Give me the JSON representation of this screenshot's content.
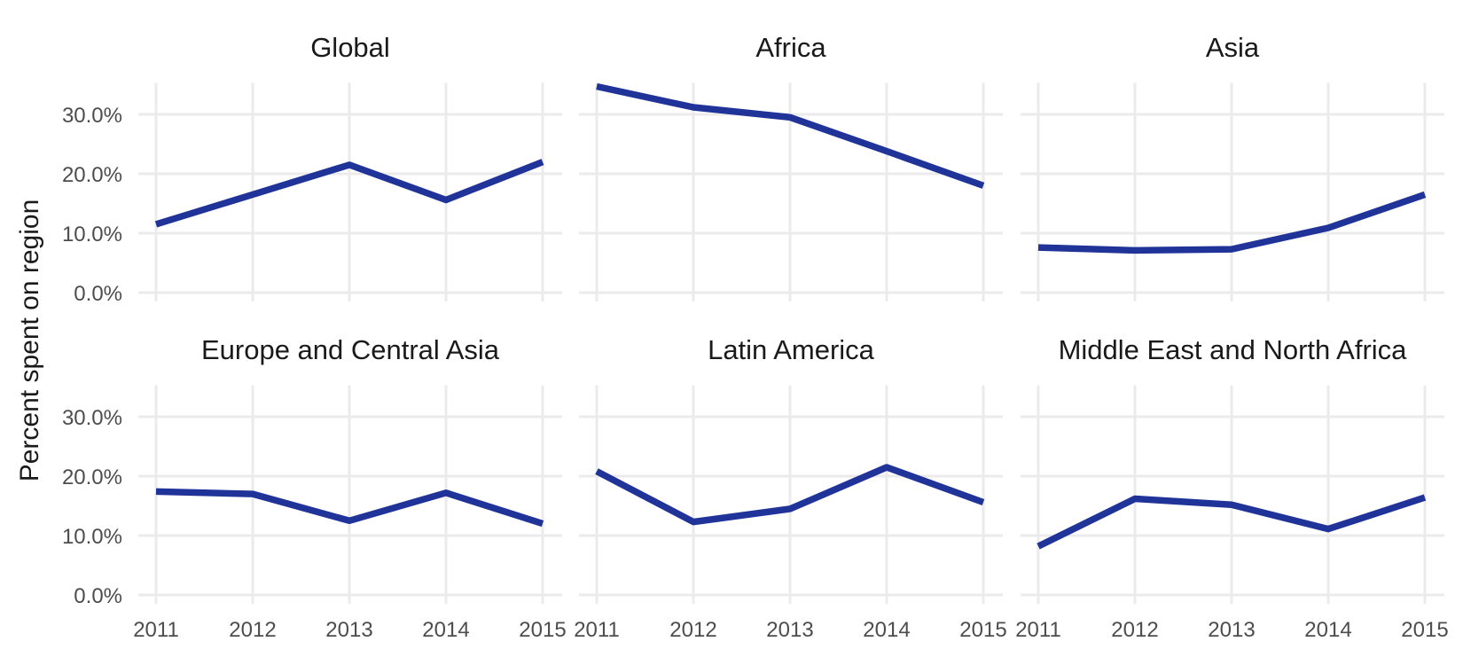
{
  "chart_data": {
    "type": "line",
    "ylabel": "Percent spent on region",
    "xlabel": "",
    "x": [
      2011,
      2012,
      2013,
      2014,
      2015
    ],
    "x_tick_labels": [
      "2011",
      "2012",
      "2013",
      "2014",
      "2015"
    ],
    "y_ticks": [
      0,
      10,
      20,
      30
    ],
    "y_tick_labels": [
      "0.0%",
      "10.0%",
      "20.0%",
      "30.0%"
    ],
    "ylim": [
      0,
      35
    ],
    "line_color": "#1f3399",
    "grid": true,
    "layout": "2 rows x 3 facets",
    "facets": [
      {
        "title": "Global",
        "values": [
          11.5,
          16.5,
          21.5,
          15.6,
          22.0
        ]
      },
      {
        "title": "Africa",
        "values": [
          34.7,
          31.2,
          29.5,
          23.8,
          18.0
        ]
      },
      {
        "title": "Asia",
        "values": [
          7.6,
          7.1,
          7.3,
          10.9,
          16.5
        ]
      },
      {
        "title": "Europe and Central Asia",
        "values": [
          17.4,
          17.0,
          12.5,
          17.2,
          12.0
        ]
      },
      {
        "title": "Latin America",
        "values": [
          20.8,
          12.3,
          14.5,
          21.5,
          15.6
        ]
      },
      {
        "title": "Middle East and North Africa",
        "values": [
          8.2,
          16.2,
          15.2,
          11.1,
          16.4
        ]
      }
    ]
  }
}
